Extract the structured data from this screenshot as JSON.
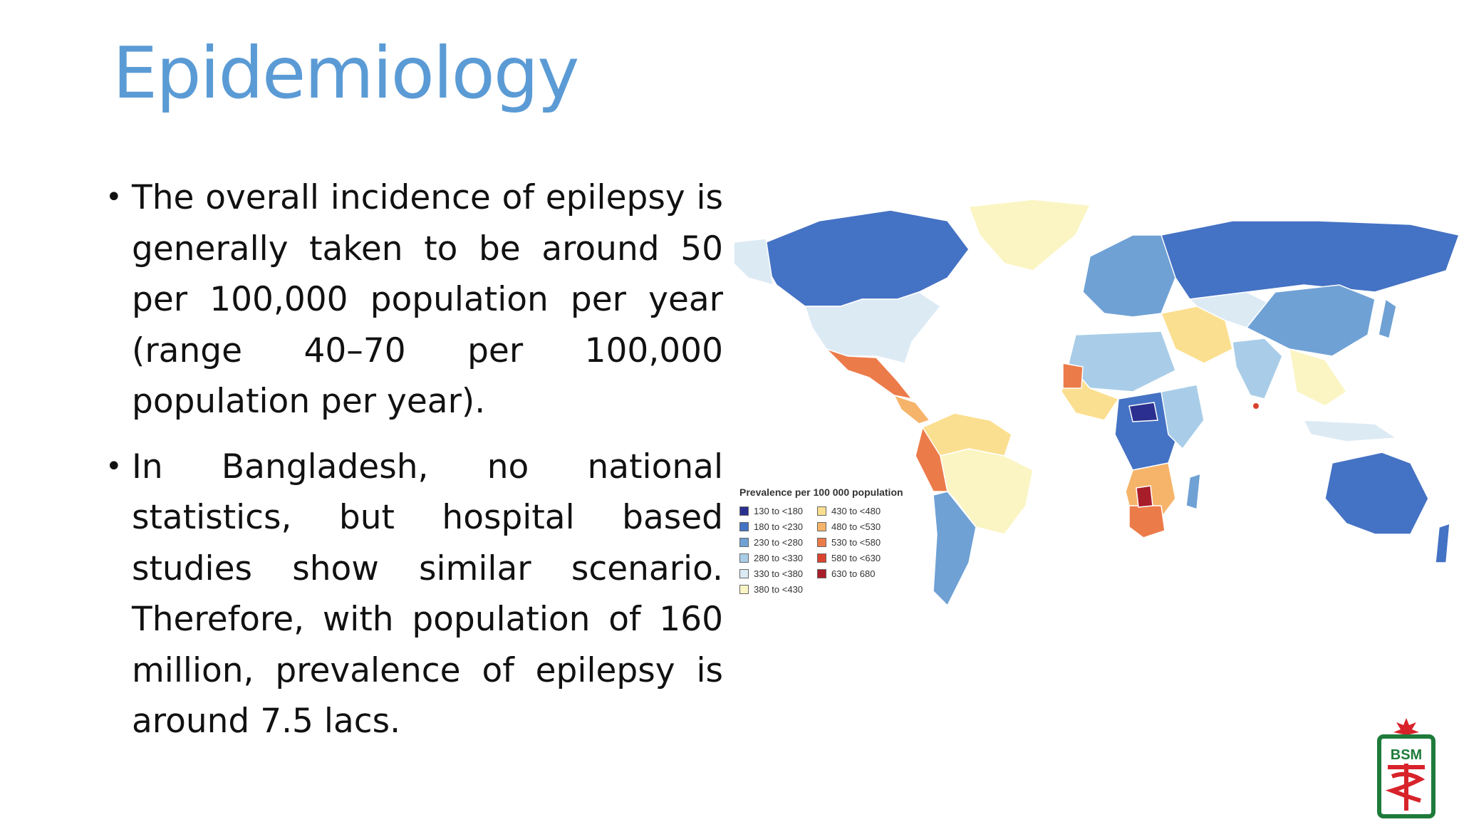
{
  "slide": {
    "title": "Epidemiology",
    "bullets": [
      "The overall incidence of epilepsy is generally taken to be around 50 per 100,000 population per year (range 40–70 per 100,000 population per year).",
      "In Bangladesh, no national statistics, but hospital based studies show similar scenario. Therefore, with population of 160 million, prevalence of epilepsy is around 7.5 lacs."
    ]
  },
  "map": {
    "legend_title": "Prevalence per 100 000 population",
    "legend": [
      {
        "label": "130 to <180",
        "color": "#2b2f8f"
      },
      {
        "label": "180 to <230",
        "color": "#4472c4"
      },
      {
        "label": "230 to <280",
        "color": "#6fa1d4"
      },
      {
        "label": "280 to <330",
        "color": "#a9cde8"
      },
      {
        "label": "330 to <380",
        "color": "#dceaf4"
      },
      {
        "label": "380 to <430",
        "color": "#fbf5c4"
      },
      {
        "label": "430 to <480",
        "color": "#fbdf90"
      },
      {
        "label": "480 to <530",
        "color": "#f6b46a"
      },
      {
        "label": "530 to <580",
        "color": "#ec7b4a"
      },
      {
        "label": "580 to <630",
        "color": "#d9432d"
      },
      {
        "label": "630 to 680",
        "color": "#a81d2a"
      }
    ]
  },
  "logo": {
    "text": "BSM"
  }
}
